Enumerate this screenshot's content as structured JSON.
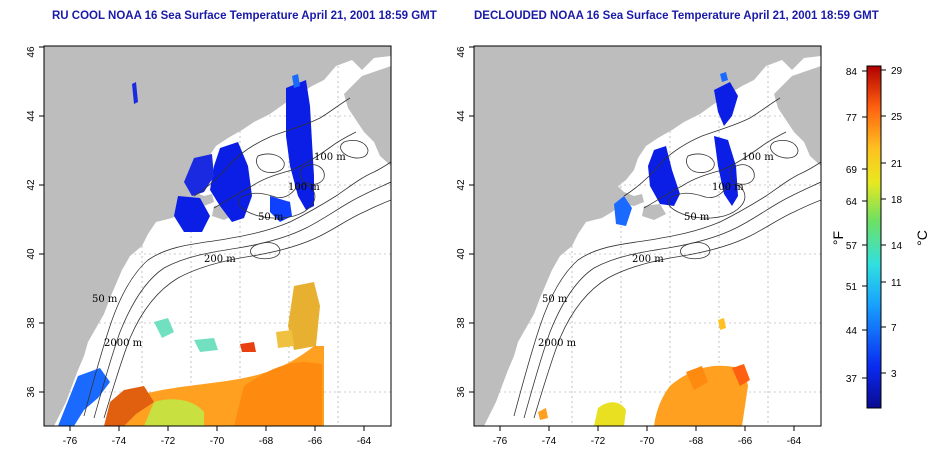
{
  "panels": [
    {
      "id": "left",
      "title": "RU COOL NOAA 16 Sea Surface Temperature April 21, 2001 18:59 GMT"
    },
    {
      "id": "right",
      "title": "DECLOUDED NOAA 16 Sea Surface Temperature April 21, 2001 18:59 GMT"
    }
  ],
  "axes": {
    "x_ticks": [
      "-76",
      "-74",
      "-72",
      "-70",
      "-68",
      "-66",
      "-64"
    ],
    "y_ticks": [
      "36",
      "38",
      "40",
      "42",
      "44",
      "46"
    ]
  },
  "contour_labels": {
    "left": [
      "100 m",
      "100 m",
      "50 m",
      "200 m",
      "50 m",
      "2000 m"
    ],
    "right": [
      "100 m",
      "100 m",
      "50 m",
      "200 m",
      "50 m",
      "2000 m"
    ]
  },
  "colorbar": {
    "fahrenheit_ticks": [
      "84",
      "77",
      "69",
      "64",
      "57",
      "51",
      "44",
      "37"
    ],
    "celsius_ticks": [
      "29",
      "25",
      "21",
      "18",
      "14",
      "11",
      "7",
      "3"
    ],
    "fahrenheit_unit": "°F",
    "celsius_unit": "°C"
  },
  "colors": {
    "land": "#bdbdbd",
    "title": "#1a1aa8",
    "grid": "#b0b0b0",
    "cold": "#0a1ee6",
    "warm": "#ff9a20"
  }
}
